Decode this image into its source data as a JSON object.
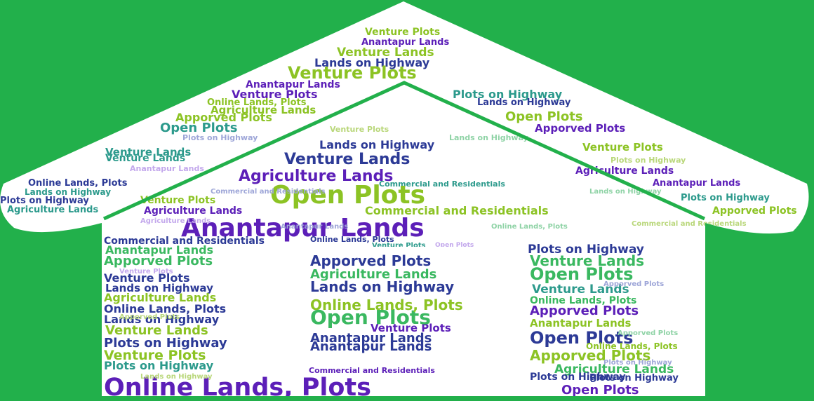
{
  "image": {
    "background_color": "#22b04b",
    "house_fill": "#ffffff",
    "roof_line_color": "#22b04b",
    "palette": {
      "purple": "#5c1fb8",
      "navy": "#2c3a96",
      "lime": "#8cc324",
      "green": "#3ab860",
      "teal": "#2c9a8c",
      "violet": "#7a3ad0"
    },
    "words": [
      "Venture Plots",
      "Anantapur Lands",
      "Venture Lands",
      "Lands on Highway",
      "Venture Plots",
      "Anantapur Lands",
      "Venture Plots",
      "Plots on Highway",
      "Agriculture Lands",
      "Online Lands, Plots",
      "Open Plots",
      "Apporved Plots",
      "Venture Lands",
      "Agriculture Lands",
      "Lands on Highway",
      "Venture Plots",
      "Open Plots",
      "Lands on Highway",
      "Apporved Plots",
      "Venture Lands",
      "Agriculture Lands",
      "Anantapur Lands",
      "Commercial and Residentials",
      "Plots on Highway",
      "Venture Plots",
      "Apporved Plots",
      "Online Lands, Plots",
      "Lands on Highway",
      "Plots on Highway",
      "Agriculture Lands",
      "Venture Lands",
      "Agriculture Lands",
      "Open Plots",
      "Commercial and Residentials",
      "Anantapur Lands",
      "Commercial and Residentials",
      "Anantapur Lands",
      "Apporved Plots",
      "Plots on Highway",
      "Lands on Highway",
      "Agriculture Lands",
      "Online Lands, Plots",
      "Lands on Highway",
      "Venture Lands",
      "Plots on Highway",
      "Venture Plots",
      "Plots on Highway",
      "Online Lands, Plots",
      "Apporved Plots",
      "Agriculture Lands",
      "Venture Lands",
      "Venture Lands",
      "Open Plots",
      "Venture Plots",
      "Anantapur Lands",
      "Anantapur Lands",
      "Commercial and Residentials",
      "Plots on Highway",
      "Venture Plots",
      "Open Plots",
      "Lands on Highway",
      "Online Lands, Plots",
      "Apporved Plots",
      "Anantapur Lands",
      "Open Plots",
      "Online Lands, Plots",
      "Apporved Plots",
      "Agriculture Lands",
      "Plots on Highway",
      "Open Plots",
      "Online Lands, Plots",
      "Venture Plots",
      "Online Lands, Plots"
    ]
  }
}
